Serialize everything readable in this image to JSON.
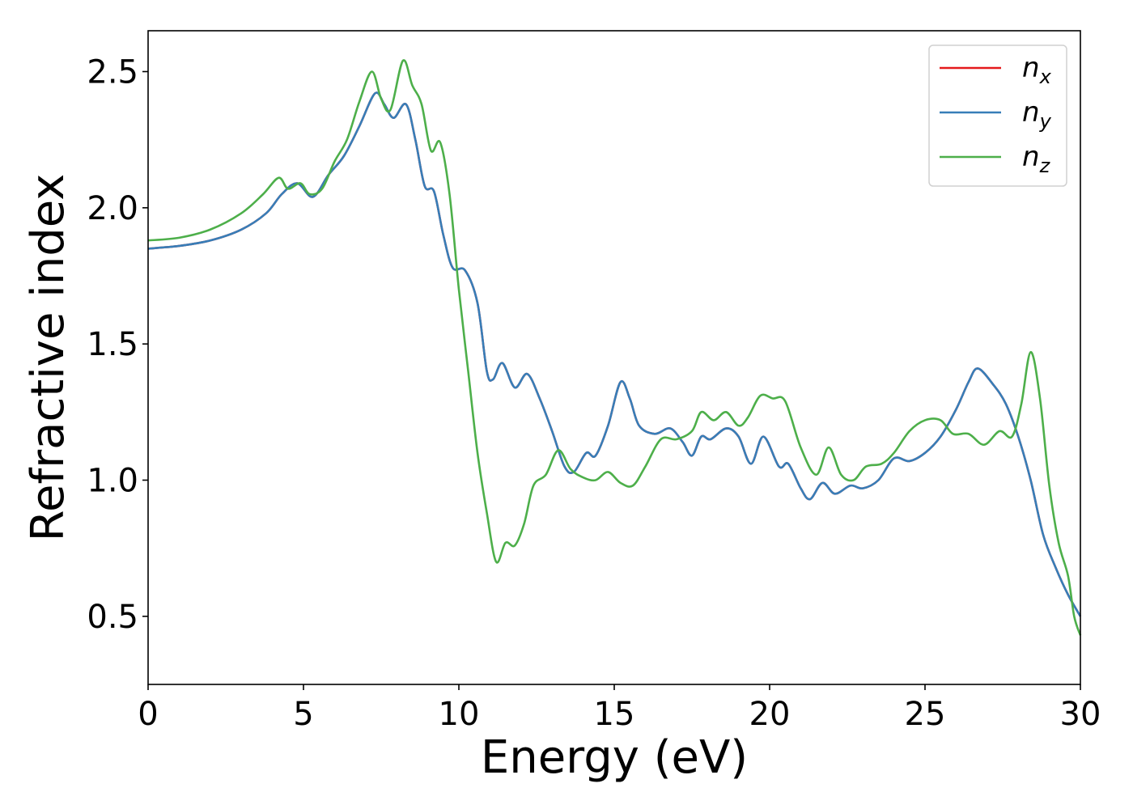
{
  "chart_data": {
    "type": "line",
    "xlabel": "Energy (eV)",
    "ylabel": "Refractive index",
    "xlim": [
      0,
      30
    ],
    "ylim": [
      0.25,
      2.65
    ],
    "xticks": [
      0,
      5,
      10,
      15,
      20,
      25,
      30
    ],
    "yticks": [
      0.5,
      1.0,
      1.5,
      2.0,
      2.5
    ],
    "xtick_labels": [
      "0",
      "5",
      "10",
      "15",
      "20",
      "25",
      "30"
    ],
    "ytick_labels": [
      "0.5",
      "1.0",
      "1.5",
      "2.0",
      "2.5"
    ],
    "grid": false,
    "legend_position": "top-right",
    "series": [
      {
        "name": "n",
        "subscript": "x",
        "color": "#e41a1c",
        "points": [
          [
            0,
            1.85
          ],
          [
            1,
            1.86
          ],
          [
            2,
            1.88
          ],
          [
            3,
            1.92
          ],
          [
            3.8,
            1.98
          ],
          [
            4.3,
            2.05
          ],
          [
            4.8,
            2.09
          ],
          [
            5.3,
            2.04
          ],
          [
            5.8,
            2.12
          ],
          [
            6.3,
            2.19
          ],
          [
            6.8,
            2.3
          ],
          [
            7.3,
            2.42
          ],
          [
            7.6,
            2.38
          ],
          [
            7.9,
            2.33
          ],
          [
            8.3,
            2.38
          ],
          [
            8.6,
            2.25
          ],
          [
            8.9,
            2.08
          ],
          [
            9.2,
            2.06
          ],
          [
            9.5,
            1.9
          ],
          [
            9.8,
            1.78
          ],
          [
            10.2,
            1.77
          ],
          [
            10.6,
            1.65
          ],
          [
            10.9,
            1.4
          ],
          [
            11.1,
            1.37
          ],
          [
            11.4,
            1.43
          ],
          [
            11.8,
            1.34
          ],
          [
            12.2,
            1.39
          ],
          [
            12.6,
            1.3
          ],
          [
            13.0,
            1.18
          ],
          [
            13.4,
            1.05
          ],
          [
            13.7,
            1.03
          ],
          [
            14.1,
            1.1
          ],
          [
            14.4,
            1.09
          ],
          [
            14.8,
            1.2
          ],
          [
            15.2,
            1.36
          ],
          [
            15.5,
            1.3
          ],
          [
            15.8,
            1.2
          ],
          [
            16.3,
            1.17
          ],
          [
            16.8,
            1.19
          ],
          [
            17.2,
            1.14
          ],
          [
            17.5,
            1.09
          ],
          [
            17.8,
            1.16
          ],
          [
            18.1,
            1.15
          ],
          [
            18.6,
            1.19
          ],
          [
            19.0,
            1.16
          ],
          [
            19.4,
            1.06
          ],
          [
            19.8,
            1.16
          ],
          [
            20.3,
            1.05
          ],
          [
            20.6,
            1.06
          ],
          [
            21.0,
            0.97
          ],
          [
            21.3,
            0.93
          ],
          [
            21.7,
            0.99
          ],
          [
            22.1,
            0.95
          ],
          [
            22.6,
            0.98
          ],
          [
            23.0,
            0.97
          ],
          [
            23.5,
            1.0
          ],
          [
            24.0,
            1.08
          ],
          [
            24.5,
            1.07
          ],
          [
            25.0,
            1.1
          ],
          [
            25.5,
            1.16
          ],
          [
            26.0,
            1.26
          ],
          [
            26.4,
            1.36
          ],
          [
            26.7,
            1.41
          ],
          [
            27.2,
            1.35
          ],
          [
            27.6,
            1.28
          ],
          [
            28.0,
            1.16
          ],
          [
            28.4,
            1.0
          ],
          [
            28.8,
            0.8
          ],
          [
            29.2,
            0.68
          ],
          [
            29.6,
            0.58
          ],
          [
            30.0,
            0.5
          ]
        ]
      },
      {
        "name": "n",
        "subscript": "y",
        "color": "#377eb8",
        "points": [
          [
            0,
            1.85
          ],
          [
            1,
            1.86
          ],
          [
            2,
            1.88
          ],
          [
            3,
            1.92
          ],
          [
            3.8,
            1.98
          ],
          [
            4.3,
            2.05
          ],
          [
            4.8,
            2.09
          ],
          [
            5.3,
            2.04
          ],
          [
            5.8,
            2.12
          ],
          [
            6.3,
            2.19
          ],
          [
            6.8,
            2.3
          ],
          [
            7.3,
            2.42
          ],
          [
            7.6,
            2.38
          ],
          [
            7.9,
            2.33
          ],
          [
            8.3,
            2.38
          ],
          [
            8.6,
            2.25
          ],
          [
            8.9,
            2.08
          ],
          [
            9.2,
            2.06
          ],
          [
            9.5,
            1.9
          ],
          [
            9.8,
            1.78
          ],
          [
            10.2,
            1.77
          ],
          [
            10.6,
            1.65
          ],
          [
            10.9,
            1.4
          ],
          [
            11.1,
            1.37
          ],
          [
            11.4,
            1.43
          ],
          [
            11.8,
            1.34
          ],
          [
            12.2,
            1.39
          ],
          [
            12.6,
            1.3
          ],
          [
            13.0,
            1.18
          ],
          [
            13.4,
            1.05
          ],
          [
            13.7,
            1.03
          ],
          [
            14.1,
            1.1
          ],
          [
            14.4,
            1.09
          ],
          [
            14.8,
            1.2
          ],
          [
            15.2,
            1.36
          ],
          [
            15.5,
            1.3
          ],
          [
            15.8,
            1.2
          ],
          [
            16.3,
            1.17
          ],
          [
            16.8,
            1.19
          ],
          [
            17.2,
            1.14
          ],
          [
            17.5,
            1.09
          ],
          [
            17.8,
            1.16
          ],
          [
            18.1,
            1.15
          ],
          [
            18.6,
            1.19
          ],
          [
            19.0,
            1.16
          ],
          [
            19.4,
            1.06
          ],
          [
            19.8,
            1.16
          ],
          [
            20.3,
            1.05
          ],
          [
            20.6,
            1.06
          ],
          [
            21.0,
            0.97
          ],
          [
            21.3,
            0.93
          ],
          [
            21.7,
            0.99
          ],
          [
            22.1,
            0.95
          ],
          [
            22.6,
            0.98
          ],
          [
            23.0,
            0.97
          ],
          [
            23.5,
            1.0
          ],
          [
            24.0,
            1.08
          ],
          [
            24.5,
            1.07
          ],
          [
            25.0,
            1.1
          ],
          [
            25.5,
            1.16
          ],
          [
            26.0,
            1.26
          ],
          [
            26.4,
            1.36
          ],
          [
            26.7,
            1.41
          ],
          [
            27.2,
            1.35
          ],
          [
            27.6,
            1.28
          ],
          [
            28.0,
            1.16
          ],
          [
            28.4,
            1.0
          ],
          [
            28.8,
            0.8
          ],
          [
            29.2,
            0.68
          ],
          [
            29.6,
            0.58
          ],
          [
            30.0,
            0.5
          ]
        ]
      },
      {
        "name": "n",
        "subscript": "z",
        "color": "#4daf4a",
        "points": [
          [
            0,
            1.88
          ],
          [
            1,
            1.89
          ],
          [
            2,
            1.92
          ],
          [
            3,
            1.98
          ],
          [
            3.7,
            2.05
          ],
          [
            4.2,
            2.11
          ],
          [
            4.5,
            2.07
          ],
          [
            4.9,
            2.09
          ],
          [
            5.2,
            2.05
          ],
          [
            5.6,
            2.07
          ],
          [
            6.0,
            2.17
          ],
          [
            6.4,
            2.25
          ],
          [
            6.8,
            2.39
          ],
          [
            7.2,
            2.5
          ],
          [
            7.5,
            2.4
          ],
          [
            7.8,
            2.36
          ],
          [
            8.2,
            2.54
          ],
          [
            8.5,
            2.45
          ],
          [
            8.8,
            2.38
          ],
          [
            9.1,
            2.21
          ],
          [
            9.4,
            2.24
          ],
          [
            9.7,
            2.05
          ],
          [
            10.0,
            1.7
          ],
          [
            10.3,
            1.4
          ],
          [
            10.6,
            1.1
          ],
          [
            10.9,
            0.88
          ],
          [
            11.2,
            0.7
          ],
          [
            11.5,
            0.77
          ],
          [
            11.8,
            0.76
          ],
          [
            12.1,
            0.84
          ],
          [
            12.4,
            0.98
          ],
          [
            12.8,
            1.02
          ],
          [
            13.2,
            1.11
          ],
          [
            13.6,
            1.04
          ],
          [
            14.0,
            1.01
          ],
          [
            14.4,
            1.0
          ],
          [
            14.8,
            1.03
          ],
          [
            15.2,
            0.99
          ],
          [
            15.6,
            0.98
          ],
          [
            16.0,
            1.05
          ],
          [
            16.5,
            1.15
          ],
          [
            17.0,
            1.15
          ],
          [
            17.5,
            1.18
          ],
          [
            17.8,
            1.25
          ],
          [
            18.2,
            1.22
          ],
          [
            18.6,
            1.25
          ],
          [
            19.0,
            1.2
          ],
          [
            19.3,
            1.23
          ],
          [
            19.7,
            1.31
          ],
          [
            20.1,
            1.3
          ],
          [
            20.5,
            1.29
          ],
          [
            21.0,
            1.12
          ],
          [
            21.5,
            1.02
          ],
          [
            21.9,
            1.12
          ],
          [
            22.3,
            1.02
          ],
          [
            22.7,
            1.0
          ],
          [
            23.1,
            1.05
          ],
          [
            23.6,
            1.06
          ],
          [
            24.0,
            1.1
          ],
          [
            24.5,
            1.18
          ],
          [
            25.0,
            1.22
          ],
          [
            25.5,
            1.22
          ],
          [
            25.9,
            1.17
          ],
          [
            26.4,
            1.17
          ],
          [
            26.9,
            1.13
          ],
          [
            27.4,
            1.18
          ],
          [
            27.8,
            1.16
          ],
          [
            28.1,
            1.28
          ],
          [
            28.4,
            1.47
          ],
          [
            28.7,
            1.3
          ],
          [
            29.0,
            0.98
          ],
          [
            29.3,
            0.77
          ],
          [
            29.6,
            0.65
          ],
          [
            29.8,
            0.5
          ],
          [
            30.0,
            0.43
          ]
        ]
      }
    ]
  }
}
